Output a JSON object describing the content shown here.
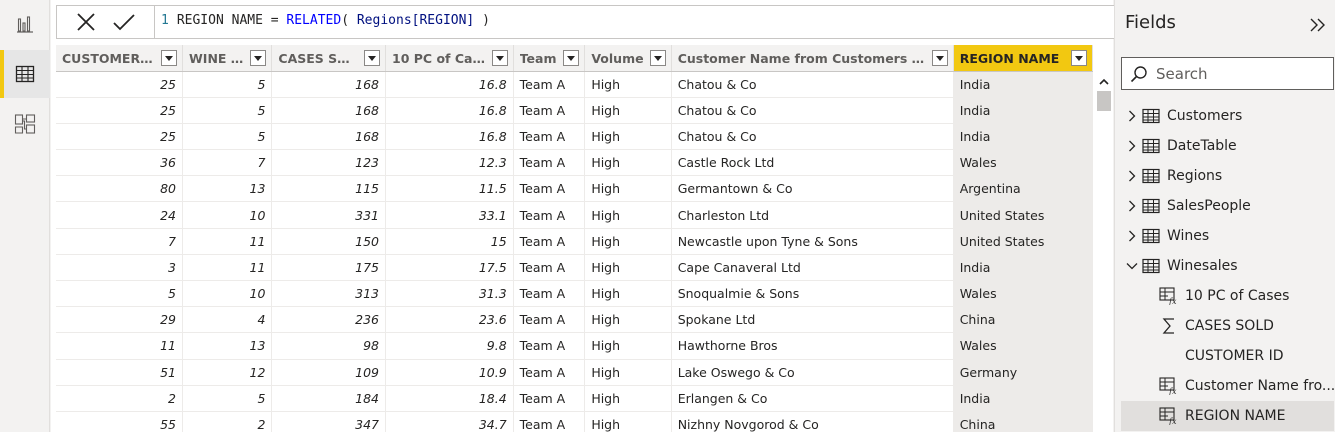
{
  "formula": {
    "line_number": "1",
    "prefix": "REGION NAME = ",
    "function": "RELATED",
    "open": "( ",
    "reference": "Regions[REGION]",
    "close": " )"
  },
  "table": {
    "columns": [
      {
        "label": "CUSTOMER ID",
        "width": 127,
        "align": "num"
      },
      {
        "label": "WINE ID",
        "width": 90,
        "align": "num"
      },
      {
        "label": "CASES SOLD",
        "width": 114,
        "align": "num"
      },
      {
        "label": "10 PC of Cases",
        "width": 128,
        "align": "num"
      },
      {
        "label": "Team",
        "width": 72,
        "align": "text"
      },
      {
        "label": "Volume",
        "width": 87,
        "align": "text"
      },
      {
        "label": "Customer Name from Customers Table",
        "width": 278,
        "align": "text"
      },
      {
        "label": "REGION NAME",
        "width": 140,
        "align": "text",
        "selected": true
      }
    ],
    "rows": [
      [
        "25",
        "5",
        "168",
        "16.8",
        "Team A",
        "High",
        "Chatou & Co",
        "India"
      ],
      [
        "25",
        "5",
        "168",
        "16.8",
        "Team A",
        "High",
        "Chatou & Co",
        "India"
      ],
      [
        "25",
        "5",
        "168",
        "16.8",
        "Team A",
        "High",
        "Chatou & Co",
        "India"
      ],
      [
        "36",
        "7",
        "123",
        "12.3",
        "Team A",
        "High",
        "Castle Rock Ltd",
        "Wales"
      ],
      [
        "80",
        "13",
        "115",
        "11.5",
        "Team A",
        "High",
        "Germantown & Co",
        "Argentina"
      ],
      [
        "24",
        "10",
        "331",
        "33.1",
        "Team A",
        "High",
        "Charleston Ltd",
        "United States"
      ],
      [
        "7",
        "11",
        "150",
        "15",
        "Team A",
        "High",
        "Newcastle upon Tyne & Sons",
        "United States"
      ],
      [
        "3",
        "11",
        "175",
        "17.5",
        "Team A",
        "High",
        "Cape Canaveral Ltd",
        "India"
      ],
      [
        "5",
        "10",
        "313",
        "31.3",
        "Team A",
        "High",
        "Snoqualmie & Sons",
        "Wales"
      ],
      [
        "29",
        "4",
        "236",
        "23.6",
        "Team A",
        "High",
        "Spokane Ltd",
        "China"
      ],
      [
        "11",
        "13",
        "98",
        "9.8",
        "Team A",
        "High",
        "Hawthorne Bros",
        "Wales"
      ],
      [
        "51",
        "12",
        "109",
        "10.9",
        "Team A",
        "High",
        "Lake Oswego & Co",
        "Germany"
      ],
      [
        "2",
        "5",
        "184",
        "18.4",
        "Team A",
        "High",
        "Erlangen & Co",
        "India"
      ],
      [
        "55",
        "2",
        "347",
        "34.7",
        "Team A",
        "High",
        "Nizhny Novgorod & Co",
        "China"
      ]
    ]
  },
  "fields": {
    "title": "Fields",
    "search_placeholder": "Search",
    "tables": [
      {
        "label": "Customers",
        "expanded": false
      },
      {
        "label": "DateTable",
        "expanded": false
      },
      {
        "label": "Regions",
        "expanded": false
      },
      {
        "label": "SalesPeople",
        "expanded": false
      },
      {
        "label": "Wines",
        "expanded": false
      },
      {
        "label": "Winesales",
        "expanded": true
      }
    ],
    "winesales_fields": [
      {
        "label": "10 PC of Cases",
        "icon": "calculated-column-icon"
      },
      {
        "label": "CASES SOLD",
        "icon": "sigma-icon"
      },
      {
        "label": "CUSTOMER ID",
        "icon": "none"
      },
      {
        "label": "Customer Name fro...",
        "icon": "calculated-column-icon"
      },
      {
        "label": "REGION NAME",
        "icon": "calculated-column-icon",
        "selected": true
      }
    ]
  },
  "colors": {
    "accent": "#f2c811",
    "selected_column_bg": "#edebe9"
  }
}
